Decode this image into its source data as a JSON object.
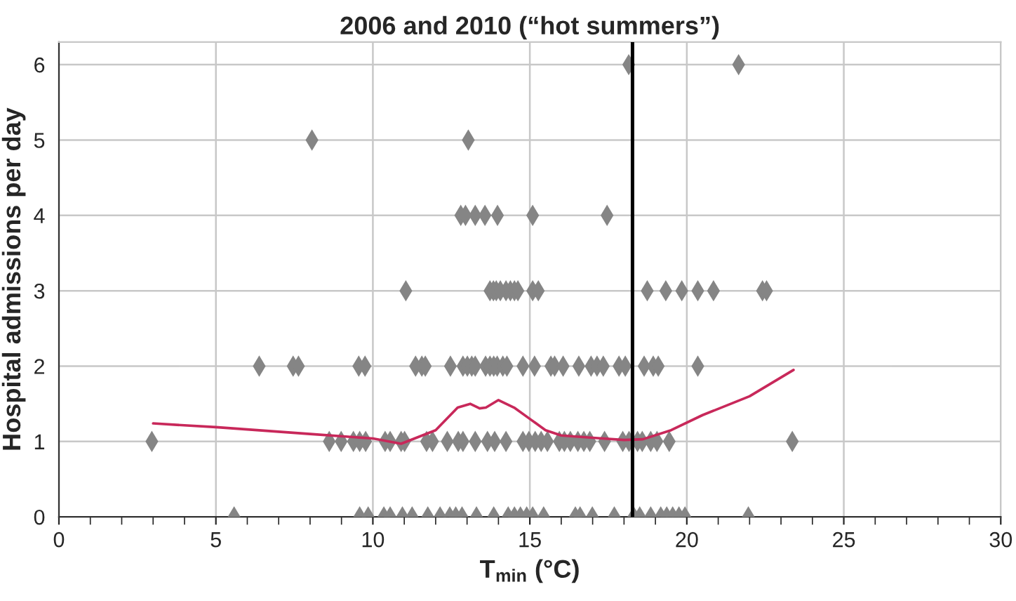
{
  "chart_data": {
    "type": "scatter",
    "title": "2006 and 2010 (“hot summers”)",
    "xlabel": "T$_{min}$ (°C)",
    "ylabel": "Hospital admissions per day",
    "xlim": [
      0,
      30
    ],
    "xticks": [
      0,
      5,
      10,
      15,
      20,
      25,
      30
    ],
    "ylim": [
      0,
      6.3
    ],
    "yticks": [
      0,
      1,
      2,
      3,
      4,
      5,
      6
    ],
    "grid": true,
    "legend": false,
    "series": [
      {
        "marker": "diamond",
        "color": "#858585",
        "x": [
          18.15,
          21.65,
          8.06,
          13.04,
          12.8,
          12.95,
          13.26,
          13.57,
          13.97,
          15.09,
          17.46,
          11.05,
          13.73,
          13.84,
          13.93,
          14.06,
          14.24,
          14.38,
          14.51,
          14.62,
          15.09,
          15.27,
          18.74,
          19.33,
          19.84,
          20.35,
          20.85,
          22.41,
          22.54,
          6.38,
          7.46,
          7.63,
          9.55,
          9.75,
          11.36,
          11.56,
          11.67,
          12.47,
          12.87,
          13.01,
          13.15,
          13.26,
          13.59,
          13.73,
          13.85,
          13.96,
          14.14,
          14.27,
          14.78,
          15.15,
          15.67,
          15.79,
          16.06,
          16.56,
          16.95,
          17.14,
          17.34,
          17.84,
          18.04,
          18.64,
          18.93,
          19.09,
          20.35,
          2.96,
          8.61,
          8.99,
          9.38,
          9.58,
          9.77,
          10.39,
          10.55,
          10.9,
          11.01,
          11.71,
          11.9,
          12.37,
          12.72,
          12.87,
          13.26,
          13.65,
          13.88,
          14.24,
          14.78,
          14.97,
          15.17,
          15.36,
          15.56,
          15.94,
          16.1,
          16.29,
          16.53,
          16.72,
          16.91,
          17.38,
          17.96,
          18.16,
          18.43,
          18.58,
          18.85,
          19.05,
          19.44,
          23.36,
          5.58,
          9.58,
          9.85,
          10.35,
          10.55,
          10.94,
          11.25,
          11.75,
          12.14,
          12.45,
          12.64,
          12.84,
          13.3,
          13.85,
          14.31,
          14.51,
          14.7,
          14.9,
          15.09,
          15.44,
          16.45,
          16.6,
          16.99,
          17.69,
          18.31,
          18.5,
          18.85,
          19.17,
          19.36,
          19.55,
          19.75,
          19.94,
          21.96
        ],
        "values": [
          6,
          6,
          5,
          5,
          4,
          4,
          4,
          4,
          4,
          4,
          4,
          3,
          3,
          3,
          3,
          3,
          3,
          3,
          3,
          3,
          3,
          3,
          3,
          3,
          3,
          3,
          3,
          3,
          3,
          2,
          2,
          2,
          2,
          2,
          2,
          2,
          2,
          2,
          2,
          2,
          2,
          2,
          2,
          2,
          2,
          2,
          2,
          2,
          2,
          2,
          2,
          2,
          2,
          2,
          2,
          2,
          2,
          2,
          2,
          2,
          2,
          2,
          2,
          1,
          1,
          1,
          1,
          1,
          1,
          1,
          1,
          1,
          1,
          1,
          1,
          1,
          1,
          1,
          1,
          1,
          1,
          1,
          1,
          1,
          1,
          1,
          1,
          1,
          1,
          1,
          1,
          1,
          1,
          1,
          1,
          1,
          1,
          1,
          1,
          1,
          1,
          1,
          0,
          0,
          0,
          0,
          0,
          0,
          0,
          0,
          0,
          0,
          0,
          0,
          0,
          0,
          0,
          0,
          0,
          0,
          0,
          0,
          0,
          0,
          0,
          0,
          0,
          0,
          0,
          0,
          0,
          0,
          0,
          0,
          0
        ]
      },
      {
        "type": "line",
        "marker": "none",
        "color": "#c8285a",
        "x": [
          3,
          5,
          8,
          10,
          10.9,
          12,
          12.7,
          13.1,
          13.4,
          13.6,
          14,
          14.5,
          15,
          15.5,
          16,
          17,
          18,
          18.6,
          19.5,
          20.5,
          22,
          23.4
        ],
        "values": [
          1.24,
          1.19,
          1.1,
          1.04,
          0.97,
          1.15,
          1.45,
          1.5,
          1.44,
          1.45,
          1.55,
          1.45,
          1.3,
          1.15,
          1.08,
          1.05,
          1.02,
          1.03,
          1.15,
          1.35,
          1.6,
          1.95
        ]
      }
    ],
    "ref_lines": [
      {
        "axis": "x",
        "value": 18.27,
        "color": "#000000"
      }
    ]
  }
}
